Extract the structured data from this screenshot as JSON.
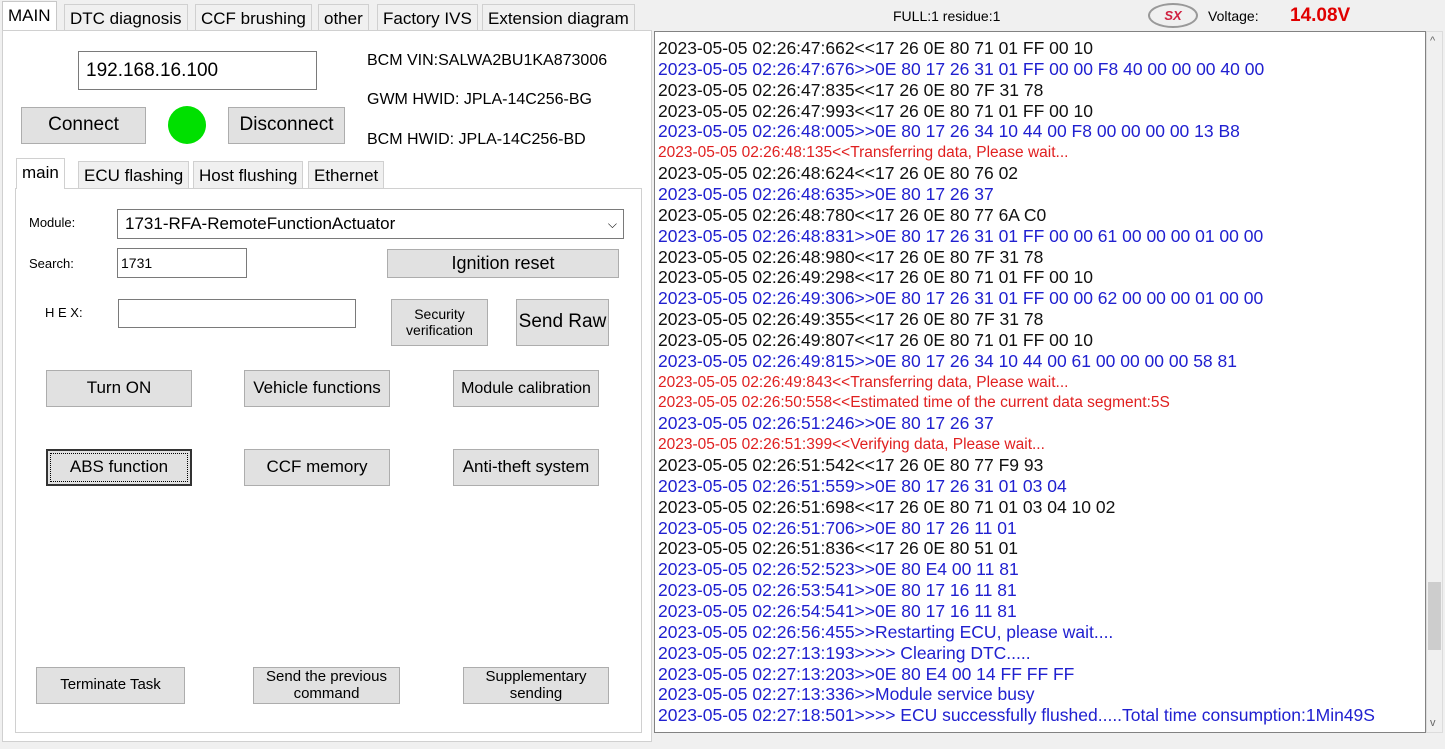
{
  "top_tabs": [
    {
      "label": "MAIN"
    },
    {
      "label": "DTC diagnosis"
    },
    {
      "label": "CCF brushing"
    },
    {
      "label": "other"
    },
    {
      "label": "Factory IVS"
    },
    {
      "label": "Extension diagram"
    }
  ],
  "status": {
    "full_residue": "FULL:1 residue:1",
    "logo_text": "SX",
    "voltage_label": "Voltage:",
    "voltage_value": "14.08V",
    "voltage_color": "#e00000"
  },
  "connection": {
    "ip": "192.168.16.100",
    "connect_label": "Connect",
    "disconnect_label": "Disconnect",
    "status_color": "#00e000",
    "bcm_vin": "BCM VIN:SALWA2BU1KA873006",
    "gwm_hwid": "GWM HWID: JPLA-14C256-BG",
    "bcm_hwid": "BCM HWID: JPLA-14C256-BD"
  },
  "sub_tabs": [
    {
      "label": "main"
    },
    {
      "label": "ECU flashing"
    },
    {
      "label": "Host flushing"
    },
    {
      "label": "Ethernet"
    }
  ],
  "form": {
    "module_label": "Module:",
    "module_value": "1731-RFA-RemoteFunctionActuator",
    "search_label": "Search:",
    "search_value": "1731",
    "hex_label": "H E X:",
    "hex_value": ""
  },
  "buttons": {
    "ignition_reset": "Ignition reset",
    "security": "Security verification",
    "send_raw": "Send Raw",
    "turn_on": "Turn ON",
    "vehicle_functions": "Vehicle functions",
    "module_calibration": "Module calibration",
    "abs_function": "ABS function",
    "ccf_memory": "CCF memory",
    "anti_theft": "Anti-theft system",
    "terminate": "Terminate Task",
    "send_previous": "Send the previous command",
    "supplementary": "Supplementary sending"
  },
  "log": [
    {
      "t": "2023-05-05 02:26:47:662<<17 26 0E 80 71 01 FF 00 10",
      "c": "black"
    },
    {
      "t": "2023-05-05 02:26:47:676>>0E 80 17 26 31 01 FF 00 00 F8 40 00 00 00 40 00",
      "c": "blue"
    },
    {
      "t": "2023-05-05 02:26:47:835<<17 26 0E 80 7F 31 78",
      "c": "black"
    },
    {
      "t": "2023-05-05 02:26:47:993<<17 26 0E 80 71 01 FF 00 10",
      "c": "black"
    },
    {
      "t": "2023-05-05 02:26:48:005>>0E 80 17 26 34 10 44 00 F8 00 00 00 00 13 B8",
      "c": "blue"
    },
    {
      "t": "2023-05-05 02:26:48:135<<Transferring data, Please wait...",
      "c": "red"
    },
    {
      "t": "2023-05-05 02:26:48:624<<17 26 0E 80 76 02",
      "c": "black"
    },
    {
      "t": "2023-05-05 02:26:48:635>>0E 80 17 26 37",
      "c": "blue"
    },
    {
      "t": "2023-05-05 02:26:48:780<<17 26 0E 80 77 6A C0",
      "c": "black"
    },
    {
      "t": "2023-05-05 02:26:48:831>>0E 80 17 26 31 01 FF 00 00 61 00 00 00 01 00 00",
      "c": "blue"
    },
    {
      "t": "2023-05-05 02:26:48:980<<17 26 0E 80 7F 31 78",
      "c": "black"
    },
    {
      "t": "2023-05-05 02:26:49:298<<17 26 0E 80 71 01 FF 00 10",
      "c": "black"
    },
    {
      "t": "2023-05-05 02:26:49:306>>0E 80 17 26 31 01 FF 00 00 62 00 00 00 01 00 00",
      "c": "blue"
    },
    {
      "t": "2023-05-05 02:26:49:355<<17 26 0E 80 7F 31 78",
      "c": "black"
    },
    {
      "t": "2023-05-05 02:26:49:807<<17 26 0E 80 71 01 FF 00 10",
      "c": "black"
    },
    {
      "t": "2023-05-05 02:26:49:815>>0E 80 17 26 34 10 44 00 61 00 00 00 00 58 81",
      "c": "blue"
    },
    {
      "t": "2023-05-05 02:26:49:843<<Transferring data, Please wait...",
      "c": "red"
    },
    {
      "t": "2023-05-05 02:26:50:558<<Estimated time of the current data segment:5S",
      "c": "red"
    },
    {
      "t": "2023-05-05 02:26:51:246>>0E 80 17 26 37",
      "c": "blue"
    },
    {
      "t": "2023-05-05 02:26:51:399<<Verifying data, Please wait...",
      "c": "red"
    },
    {
      "t": "2023-05-05 02:26:51:542<<17 26 0E 80 77 F9 93",
      "c": "black"
    },
    {
      "t": "2023-05-05 02:26:51:559>>0E 80 17 26 31 01 03 04",
      "c": "blue"
    },
    {
      "t": "2023-05-05 02:26:51:698<<17 26 0E 80 71 01 03 04 10 02",
      "c": "black"
    },
    {
      "t": "2023-05-05 02:26:51:706>>0E 80 17 26 11 01",
      "c": "blue"
    },
    {
      "t": "2023-05-05 02:26:51:836<<17 26 0E 80 51 01",
      "c": "black"
    },
    {
      "t": "2023-05-05 02:26:52:523>>0E 80 E4 00 11 81",
      "c": "blue"
    },
    {
      "t": "2023-05-05 02:26:53:541>>0E 80 17 16 11 81",
      "c": "blue"
    },
    {
      "t": "2023-05-05 02:26:54:541>>0E 80 17 16 11 81",
      "c": "blue"
    },
    {
      "t": "2023-05-05 02:26:56:455>>Restarting ECU, please wait....",
      "c": "blue"
    },
    {
      "t": "2023-05-05 02:27:13:193>>>> Clearing DTC.....",
      "c": "blue"
    },
    {
      "t": "2023-05-05 02:27:13:203>>0E 80 E4 00 14 FF FF FF",
      "c": "blue"
    },
    {
      "t": "2023-05-05 02:27:13:336>>Module service busy",
      "c": "blue"
    },
    {
      "t": "2023-05-05 02:27:18:501>>>> ECU successfully flushed.....Total time consumption:1Min49S",
      "c": "blue"
    }
  ]
}
